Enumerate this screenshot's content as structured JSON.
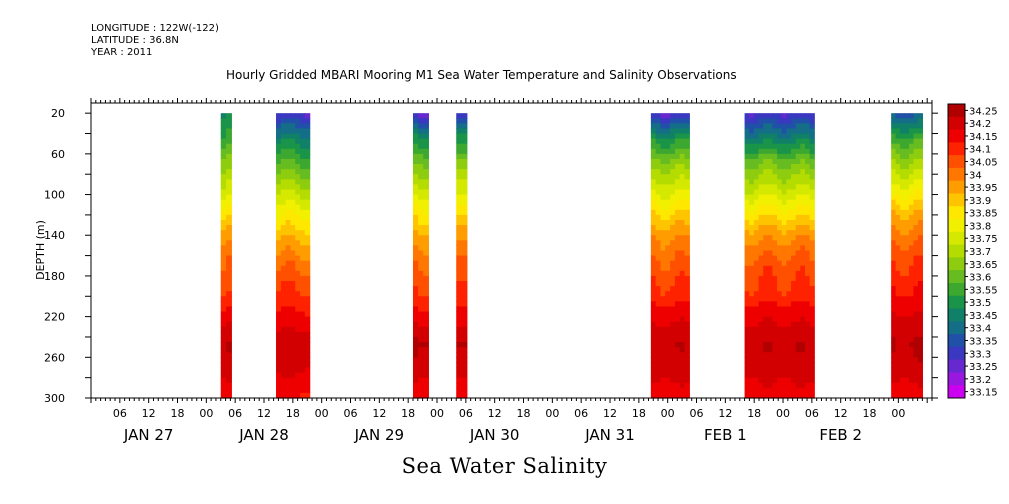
{
  "header": {
    "longitude": "LONGITUDE : 122W(-122)",
    "latitude": "LATITUDE : 36.8N",
    "year": "YEAR : 2011"
  },
  "title": "Hourly Gridded MBARI Mooring M1 Sea Water Temperature and Salinity Observations",
  "footer_title": "Sea Water Salinity",
  "chart_data": {
    "type": "heatmap",
    "title": "Hourly Gridded MBARI Mooring M1 Sea Water Temperature and Salinity Observations",
    "variable": "Sea Water Salinity",
    "ylabel": "DEPTH (m)",
    "y_inverted": true,
    "ylim": [
      300,
      10
    ],
    "y_ticks": [
      20,
      60,
      100,
      140,
      180,
      220,
      260,
      300
    ],
    "x_range_hours": [
      0,
      175
    ],
    "x_hour_ticks": [
      "06",
      "12",
      "18",
      "00",
      "06",
      "12",
      "18",
      "00",
      "06",
      "12",
      "18",
      "00",
      "06",
      "12",
      "18",
      "00",
      "06",
      "12",
      "18",
      "00",
      "06",
      "12",
      "18",
      "00",
      "06",
      "12",
      "18",
      "00"
    ],
    "x_day_labels": [
      "JAN 27",
      "JAN 28",
      "JAN 29",
      "JAN 30",
      "JAN 31",
      "FEB  1",
      "FEB  2"
    ],
    "colorbar": {
      "levels": [
        "34.25",
        "34.2",
        "34.15",
        "34.1",
        "34.05",
        "34",
        "33.95",
        "33.9",
        "33.85",
        "33.8",
        "33.75",
        "33.7",
        "33.65",
        "33.6",
        "33.55",
        "33.5",
        "33.45",
        "33.4",
        "33.35",
        "33.3",
        "33.25",
        "33.2",
        "33.15"
      ],
      "colors": [
        "#b00000",
        "#d20000",
        "#ee0000",
        "#ff2200",
        "#ff5000",
        "#ff7600",
        "#ff9c00",
        "#ffc400",
        "#ffe800",
        "#f0f000",
        "#d4e800",
        "#b4dc00",
        "#8ecc10",
        "#66bc20",
        "#3ca830",
        "#1a9448",
        "#108068",
        "#156e88",
        "#2050a8",
        "#3a38c0",
        "#6828d0",
        "#9818e0",
        "#cc00f0"
      ]
    },
    "data_segments": [
      {
        "start_hour": 27.0,
        "end_hour": 29.2,
        "profile": [
          33.47,
          33.55,
          33.66,
          33.75,
          33.87,
          33.98,
          34.04,
          34.07,
          34.15,
          34.23,
          34.21,
          34.14
        ]
      },
      {
        "start_hour": 38.5,
        "end_hour": 45.5,
        "profile": [
          33.28,
          33.45,
          33.58,
          33.7,
          33.82,
          33.93,
          34.02,
          34.08,
          34.14,
          34.21,
          34.19,
          34.13
        ]
      },
      {
        "start_hour": 67.0,
        "end_hour": 70.2,
        "profile": [
          33.25,
          33.5,
          33.63,
          33.74,
          33.86,
          33.96,
          34.03,
          34.08,
          34.15,
          34.24,
          34.21,
          34.14
        ]
      },
      {
        "start_hour": 76.0,
        "end_hour": 78.2,
        "profile": [
          33.25,
          33.48,
          33.62,
          33.74,
          33.85,
          33.96,
          34.03,
          34.07,
          34.14,
          34.22,
          34.2,
          34.13
        ]
      },
      {
        "start_hour": 116.5,
        "end_hour": 124.5,
        "profile": [
          33.27,
          33.5,
          33.65,
          33.76,
          33.88,
          33.98,
          34.04,
          34.09,
          34.16,
          34.22,
          34.21,
          34.15
        ]
      },
      {
        "start_hour": 136.0,
        "end_hour": 150.5,
        "profile": [
          33.28,
          33.45,
          33.62,
          33.73,
          33.86,
          33.98,
          34.05,
          34.09,
          34.16,
          34.22,
          34.21,
          34.15
        ]
      },
      {
        "start_hour": 166.5,
        "end_hour": 173.0,
        "profile": [
          33.35,
          33.55,
          33.68,
          33.8,
          33.93,
          34.02,
          34.08,
          34.12,
          34.18,
          34.23,
          34.21,
          34.15
        ]
      }
    ],
    "profile_depths": [
      20,
      45,
      70,
      95,
      120,
      145,
      170,
      195,
      220,
      245,
      270,
      295
    ]
  }
}
